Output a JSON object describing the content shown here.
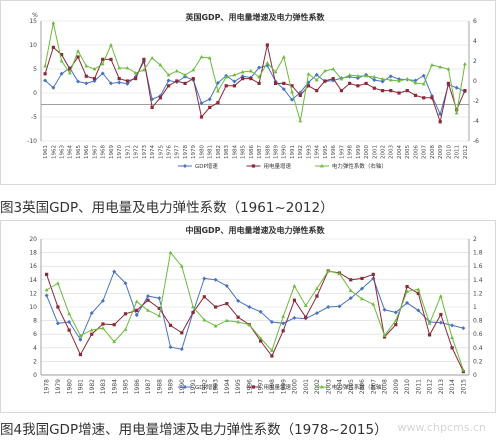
{
  "captions": {
    "uk": "图3英国GDP、用电量及电力弹性系数（1961~2012）",
    "cn": "图4我国GDP增速、用电量增速及电力弹性系数（1978~2015）"
  },
  "watermark": "www.chpcms.cn",
  "colors": {
    "gdp": "#4a72c4",
    "electricity": "#8b2a3a",
    "elasticity": "#6cbb3c",
    "grid": "#d9d9d9",
    "axis": "#808080"
  },
  "chart_data": [
    {
      "type": "line",
      "title": "英国GDP、用电量增速及电力弹性系数",
      "y_unit_label": "%",
      "x": [
        "1961",
        "1962",
        "1963",
        "1964",
        "1965",
        "1966",
        "1967",
        "1968",
        "1969",
        "1970",
        "1971",
        "1972",
        "1973",
        "1974",
        "1975",
        "1976",
        "1977",
        "1978",
        "1979",
        "1980",
        "1981",
        "1982",
        "1983",
        "1984",
        "1985",
        "1986",
        "1987",
        "1988",
        "1989",
        "1990",
        "1991",
        "1992",
        "1993",
        "1994",
        "1995",
        "1996",
        "1997",
        "1998",
        "1999",
        "2000",
        "2001",
        "2002",
        "2003",
        "2004",
        "2005",
        "2006",
        "2007",
        "2008",
        "2009",
        "2010",
        "2011",
        "2012"
      ],
      "ylim": [
        -10,
        15
      ],
      "y_ticks": [
        -10,
        -5,
        0,
        5,
        10,
        15
      ],
      "y2lim": [
        -6,
        6
      ],
      "y2_ticks": [
        -6,
        -4,
        -2,
        0,
        2,
        4,
        6
      ],
      "grid": true,
      "legend_position": "bottom-center",
      "series": [
        {
          "name": "GDP增速",
          "axis": "left",
          "color": "#4a72c4",
          "values": [
            2.6,
            1.1,
            4.0,
            5.2,
            2.4,
            2.0,
            2.5,
            4.1,
            2.0,
            2.2,
            1.9,
            3.4,
            6.5,
            -1.3,
            -0.6,
            2.6,
            2.3,
            3.4,
            2.7,
            -2.1,
            -1.3,
            2.1,
            3.6,
            2.4,
            3.5,
            3.2,
            5.3,
            5.7,
            2.4,
            0.8,
            -1.4,
            0.1,
            2.2,
            3.8,
            2.4,
            2.6,
            3.1,
            3.4,
            3.1,
            3.8,
            2.7,
            2.4,
            3.5,
            2.9,
            2.8,
            2.6,
            3.6,
            -0.6,
            -4.4,
            1.7,
            1.1,
            0.3
          ]
        },
        {
          "name": "用电量增速",
          "axis": "left",
          "color": "#8b2a3a",
          "values": [
            4.0,
            9.5,
            8.0,
            5.0,
            7.5,
            3.5,
            3.0,
            7.0,
            7.0,
            3.0,
            2.5,
            3.0,
            7.0,
            -3.0,
            -1.0,
            1.5,
            2.5,
            2.0,
            3.0,
            -5.0,
            -3.0,
            -2.0,
            1.5,
            1.5,
            3.0,
            3.0,
            2.0,
            10.0,
            2.0,
            2.0,
            1.5,
            -0.5,
            1.5,
            0.5,
            2.5,
            3.0,
            0.5,
            2.0,
            1.5,
            2.0,
            1.0,
            0.5,
            0.5,
            0.0,
            0.5,
            -0.5,
            -1.0,
            -1.0,
            -6.0,
            2.0,
            -3.5,
            0.5
          ]
        },
        {
          "name": "电力弹性系数（右轴）",
          "axis": "right",
          "color": "#6cbb3c",
          "values": [
            1.5,
            5.8,
            2.0,
            0.8,
            3.0,
            1.5,
            1.2,
            1.7,
            3.6,
            1.3,
            1.3,
            0.8,
            1.1,
            2.3,
            1.6,
            0.6,
            1.0,
            0.6,
            1.1,
            2.4,
            2.3,
            -1.0,
            0.4,
            0.6,
            0.9,
            1.0,
            0.4,
            1.8,
            0.9,
            2.4,
            -1.1,
            -4.0,
            0.7,
            0.1,
            1.0,
            1.2,
            0.2,
            0.6,
            0.5,
            0.5,
            0.4,
            0.2,
            0.1,
            0.0,
            0.2,
            -0.2,
            -0.3,
            1.6,
            1.4,
            1.2,
            -3.2,
            1.7
          ]
        }
      ]
    },
    {
      "type": "line",
      "title": "中国GDP、用电量增速及电力弹性系数",
      "x": [
        "1978",
        "1979",
        "1980",
        "1981",
        "1982",
        "1983",
        "1984",
        "1985",
        "1986",
        "1987",
        "1988",
        "1989",
        "1990",
        "1991",
        "1992",
        "1993",
        "1994",
        "1995",
        "1996",
        "1997",
        "1998",
        "1999",
        "2000",
        "2001",
        "2002",
        "2003",
        "2004",
        "2005",
        "2006",
        "2007",
        "2008",
        "2009",
        "2010",
        "2011",
        "2012",
        "2013",
        "2014",
        "2015"
      ],
      "ylim": [
        0,
        20
      ],
      "y_ticks": [
        0,
        2,
        4,
        6,
        8,
        10,
        12,
        14,
        16,
        18,
        20
      ],
      "y2lim": [
        0,
        2
      ],
      "y2_ticks": [
        0,
        0.2,
        0.4,
        0.6,
        0.8,
        1,
        1.2,
        1.4,
        1.6,
        1.8,
        2
      ],
      "grid": true,
      "legend_position": "bottom-center",
      "series": [
        {
          "name": "GDP增速",
          "axis": "left",
          "color": "#4a72c4",
          "values": [
            11.7,
            7.6,
            7.8,
            5.2,
            9.1,
            10.9,
            15.2,
            13.5,
            8.8,
            11.6,
            11.3,
            4.1,
            3.8,
            9.2,
            14.2,
            14.0,
            13.1,
            10.9,
            10.0,
            9.3,
            7.8,
            7.6,
            8.4,
            8.3,
            9.1,
            10.0,
            10.1,
            11.3,
            12.7,
            14.2,
            9.6,
            9.2,
            10.6,
            9.5,
            7.8,
            7.7,
            7.3,
            6.9
          ]
        },
        {
          "name": "用电量增速",
          "axis": "left",
          "color": "#8b2a3a",
          "values": [
            14.8,
            10.0,
            6.6,
            3.0,
            6.0,
            7.5,
            7.4,
            9.0,
            9.5,
            11.0,
            9.8,
            7.3,
            6.2,
            9.2,
            11.5,
            10.0,
            10.5,
            8.5,
            7.4,
            5.0,
            2.8,
            6.5,
            11.0,
            8.5,
            11.6,
            15.3,
            15.0,
            14.0,
            14.2,
            14.8,
            5.6,
            7.4,
            13.0,
            12.0,
            5.9,
            8.9,
            4.0,
            0.5
          ]
        },
        {
          "name": "电力弹性系数（右轴）",
          "axis": "right",
          "color": "#6cbb3c",
          "values": [
            1.25,
            1.35,
            0.9,
            0.58,
            0.66,
            0.69,
            0.49,
            0.67,
            1.08,
            0.95,
            0.87,
            1.8,
            1.6,
            1.0,
            0.81,
            0.72,
            0.8,
            0.78,
            0.74,
            0.54,
            0.36,
            0.86,
            1.31,
            1.02,
            1.27,
            1.53,
            1.49,
            1.24,
            1.12,
            1.04,
            0.58,
            0.8,
            1.23,
            1.26,
            0.76,
            1.16,
            0.55,
            0.07
          ]
        }
      ]
    }
  ]
}
